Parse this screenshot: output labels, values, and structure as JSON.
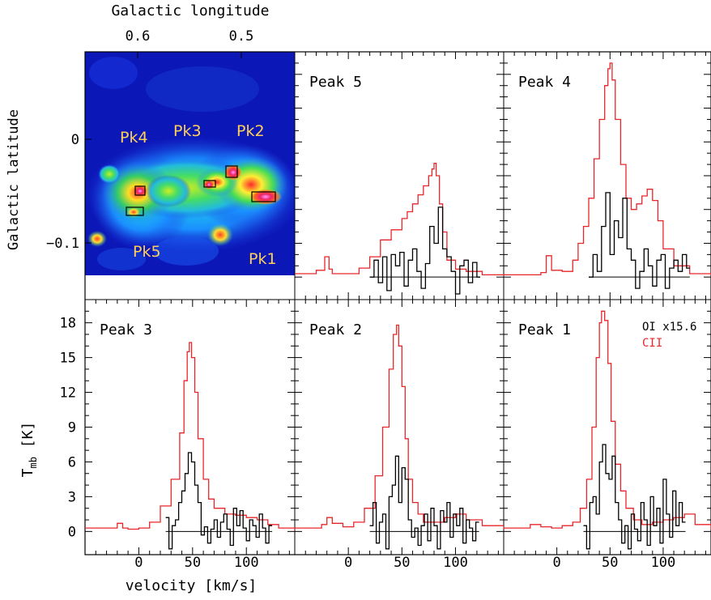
{
  "top_axis": {
    "title": "Galactic longitude",
    "ticks": [
      {
        "label": "0.6"
      },
      {
        "label": "0.5"
      }
    ]
  },
  "left_axis": {
    "title": "Galactic latitude",
    "ticks": [
      {
        "label": "0"
      },
      {
        "label": "−0.1"
      }
    ]
  },
  "map_labels": [
    "Pk4",
    "Pk3",
    "Pk2",
    "Pk5",
    "Pk1"
  ],
  "legend": {
    "oi": "OI x15.6",
    "cii": "CII"
  },
  "colors": {
    "cii": "#e8262a",
    "oi": "#000000"
  },
  "chart_data": {
    "type": "line",
    "xlabel": "velocity [km/s]",
    "ylabel_main": "T",
    "ylabel_sub": "mb",
    "ylabel_unit": " [K]",
    "xlim": [
      -50,
      145
    ],
    "ylim": [
      -2,
      20
    ],
    "yticks": [
      "0",
      "3",
      "6",
      "9",
      "12",
      "15",
      "18"
    ],
    "xticks": [
      "0",
      "50",
      "100"
    ],
    "panels": [
      {
        "title": "Peak 5",
        "series": [
          {
            "name": "CII",
            "x": [
              -50,
              -30,
              -22,
              -18,
              -15,
              -5,
              10,
              20,
              30,
              40,
              50,
              55,
              60,
              65,
              70,
              75,
              78,
              80,
              82,
              85,
              88,
              92,
              100,
              110,
              125,
              145
            ],
            "y": [
              0.3,
              0.6,
              1.8,
              0.7,
              0.3,
              0.3,
              0.8,
              1.8,
              3.3,
              4.2,
              5.2,
              5.8,
              6.5,
              7.3,
              8.1,
              9.0,
              9.6,
              10.1,
              9.0,
              6.5,
              4.0,
              1.5,
              0.7,
              0.5,
              0.2,
              0.1
            ]
          },
          {
            "name": "OI x15.6",
            "x": [
              20,
              24,
              28,
              32,
              36,
              40,
              44,
              48,
              52,
              56,
              60,
              64,
              68,
              72,
              76,
              80,
              84,
              88,
              92,
              96,
              100,
              104,
              108,
              112,
              116,
              120
            ],
            "y": [
              0,
              1.5,
              -0.5,
              1.8,
              -1.2,
              2.0,
              1.0,
              2.2,
              -0.8,
              1.5,
              2.5,
              0.5,
              -1.0,
              1.2,
              4.5,
              3.0,
              6.2,
              2.5,
              1.8,
              0.5,
              -1.5,
              1.0,
              1.5,
              -0.5,
              1.3,
              0.0
            ]
          }
        ]
      },
      {
        "title": "Peak 4",
        "series": [
          {
            "name": "CII",
            "x": [
              -50,
              -15,
              -10,
              -5,
              5,
              15,
              20,
              25,
              30,
              35,
              40,
              45,
              48,
              50,
              52,
              55,
              60,
              65,
              70,
              75,
              80,
              85,
              90,
              95,
              100,
              110,
              125,
              145
            ],
            "y": [
              0.2,
              0.4,
              1.9,
              0.6,
              0.5,
              1.5,
              3.0,
              4.5,
              7.0,
              10.5,
              14.0,
              17.0,
              18.5,
              19.0,
              17.5,
              14.0,
              10.0,
              7.0,
              6.0,
              6.5,
              7.2,
              7.8,
              6.8,
              5.0,
              2.5,
              1.0,
              0.3,
              0.2
            ]
          },
          {
            "name": "OI x15.6",
            "x": [
              30,
              34,
              38,
              42,
              46,
              50,
              54,
              58,
              62,
              66,
              70,
              74,
              78,
              82,
              86,
              90,
              94,
              98,
              102,
              106,
              110,
              114,
              118,
              122
            ],
            "y": [
              0,
              2.0,
              0.5,
              4.5,
              7.5,
              2.0,
              5.0,
              3.5,
              7.0,
              2.5,
              1.5,
              -1.0,
              0.5,
              2.5,
              1.0,
              -0.8,
              1.5,
              2.0,
              -1.0,
              0.8,
              1.5,
              0.5,
              2.0,
              0.8
            ]
          }
        ]
      },
      {
        "title": "Peak 3",
        "series": [
          {
            "name": "CII",
            "x": [
              -50,
              -20,
              -15,
              -10,
              0,
              10,
              20,
              30,
              38,
              42,
              45,
              47,
              49,
              52,
              55,
              60,
              65,
              70,
              80,
              90,
              100,
              110,
              120,
              130,
              145
            ],
            "y": [
              0.3,
              0.7,
              0.3,
              0.2,
              0.3,
              0.8,
              2.2,
              4.5,
              8.5,
              13.0,
              15.5,
              16.3,
              15.0,
              12.0,
              8.0,
              4.5,
              2.8,
              2.0,
              1.5,
              1.4,
              1.2,
              1.0,
              0.6,
              0.3,
              0.1
            ]
          },
          {
            "name": "OI x15.6",
            "x": [
              25,
              28,
              31,
              34,
              37,
              40,
              43,
              46,
              49,
              52,
              55,
              58,
              61,
              64,
              67,
              70,
              73,
              76,
              79,
              82,
              85,
              88,
              91,
              94,
              97,
              100,
              103,
              106,
              109,
              112,
              115,
              118,
              121
            ],
            "y": [
              1.2,
              -1.5,
              0.5,
              1.0,
              2.5,
              3.5,
              5.0,
              6.8,
              6.0,
              4.0,
              2.5,
              -0.3,
              0.4,
              -1.0,
              0.2,
              1.0,
              -0.5,
              0.8,
              1.5,
              0.2,
              -1.2,
              2.0,
              0.5,
              1.8,
              0.3,
              -0.8,
              1.0,
              0.5,
              -0.5,
              1.5,
              0.3,
              -1.0,
              0.5
            ]
          }
        ]
      },
      {
        "title": "Peak 2",
        "series": [
          {
            "name": "CII",
            "x": [
              -50,
              -25,
              -20,
              -15,
              -5,
              5,
              15,
              25,
              32,
              38,
              42,
              45,
              47,
              50,
              53,
              56,
              60,
              65,
              70,
              80,
              90,
              100,
              110,
              125,
              145
            ],
            "y": [
              0.3,
              0.6,
              1.2,
              0.7,
              0.4,
              0.8,
              2.0,
              4.8,
              9.0,
              14.0,
              17.0,
              17.8,
              16.0,
              12.5,
              8.0,
              4.5,
              2.5,
              1.5,
              0.8,
              0.8,
              1.2,
              1.5,
              1.0,
              0.5,
              0.2
            ]
          },
          {
            "name": "OI x15.6",
            "x": [
              20,
              23,
              26,
              29,
              32,
              35,
              38,
              41,
              44,
              47,
              50,
              53,
              56,
              59,
              62,
              65,
              68,
              71,
              74,
              77,
              80,
              83,
              86,
              89,
              92,
              95,
              98,
              101,
              104,
              107,
              110,
              113,
              116,
              119
            ],
            "y": [
              0.5,
              2.5,
              -1.0,
              0.8,
              1.5,
              -1.5,
              3.0,
              4.0,
              6.5,
              2.5,
              5.5,
              4.5,
              1.0,
              -0.5,
              0.3,
              -1.2,
              0.5,
              1.5,
              -0.8,
              2.0,
              0.5,
              -1.5,
              1.8,
              0.8,
              2.5,
              -0.5,
              1.5,
              0.5,
              2.0,
              -1.0,
              1.0,
              0.3,
              -0.8,
              0.8
            ]
          }
        ]
      },
      {
        "title": "Peak 1",
        "series": [
          {
            "name": "CII",
            "x": [
              -50,
              -25,
              -15,
              -5,
              5,
              15,
              22,
              28,
              33,
              37,
              40,
              42,
              45,
              48,
              51,
              55,
              60,
              65,
              72,
              80,
              90,
              100,
              110,
              120,
              130,
              145
            ],
            "y": [
              0.3,
              0.6,
              0.4,
              0.3,
              0.5,
              0.8,
              2.0,
              4.5,
              9.0,
              15.0,
              18.0,
              19.0,
              18.2,
              14.5,
              9.5,
              5.8,
              3.5,
              2.0,
              1.0,
              0.6,
              0.8,
              1.0,
              1.2,
              1.5,
              0.6,
              0.2
            ]
          },
          {
            "name": "OI x15.6",
            "x": [
              25,
              28,
              31,
              34,
              37,
              40,
              43,
              46,
              49,
              52,
              55,
              58,
              61,
              64,
              67,
              70,
              73,
              76,
              79,
              82,
              85,
              88,
              91,
              94,
              97,
              100,
              103,
              106,
              109,
              112,
              115,
              118
            ],
            "y": [
              0.5,
              -1.5,
              2.5,
              3.0,
              1.5,
              6.0,
              7.5,
              5.0,
              4.5,
              6.5,
              2.5,
              1.0,
              -1.0,
              0.5,
              -1.5,
              1.5,
              0.2,
              -0.8,
              2.5,
              1.0,
              -1.2,
              3.0,
              0.5,
              2.0,
              -1.0,
              4.5,
              1.5,
              -0.5,
              3.5,
              0.5,
              2.5,
              0.8
            ]
          }
        ]
      }
    ]
  }
}
